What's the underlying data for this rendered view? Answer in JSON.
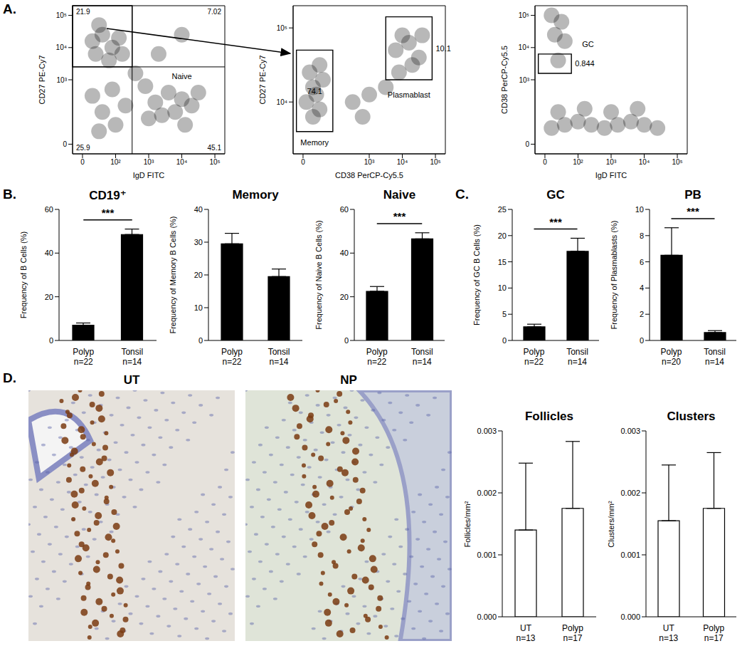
{
  "chart_data": [
    {
      "type": "scatter",
      "panel": "A.",
      "x_label": "IgD FITC",
      "y_label": "CD27 PE-Cy7",
      "xlim": [
        -0.3,
        4.3
      ],
      "ylim": [
        -0.3,
        4.3
      ],
      "xticks": [
        0,
        {
          "value": 1,
          "label": "10²"
        },
        {
          "value": 2,
          "label": "10³"
        },
        {
          "value": 3,
          "label": "10⁴"
        },
        {
          "value": 4,
          "label": "10⁵"
        }
      ],
      "yticks": [
        0,
        {
          "value": 2,
          "label": "10³"
        },
        {
          "value": 3,
          "label": "10⁴"
        },
        {
          "value": 4,
          "label": "10⁵"
        }
      ],
      "x": [
        0.3,
        0.6,
        0.9,
        0.4,
        0.8,
        1.1,
        0.5,
        1.2,
        0.3,
        0.6,
        0.9,
        0.5,
        1.0,
        1.3,
        1.6,
        1.9,
        2.2,
        2.6,
        3.0,
        2.8,
        3.3,
        2.4,
        3.5,
        2.0,
        3.1,
        2.3,
        3.0
      ],
      "y": [
        3.2,
        3.4,
        3.0,
        2.8,
        2.6,
        3.3,
        3.7,
        2.8,
        1.5,
        1.0,
        1.7,
        0.4,
        0.6,
        1.2,
        2.2,
        1.8,
        1.3,
        1.6,
        1.4,
        1.0,
        1.2,
        0.9,
        1.6,
        0.8,
        0.6,
        2.8,
        3.4
      ],
      "color": "#000000",
      "quadrants": {
        "x": 1.5,
        "y": 2.4,
        "percents": [
          21.9,
          7.02,
          25.9,
          45.1
        ]
      },
      "gates": [
        {
          "x": [
            -0.3,
            1.5
          ],
          "y": [
            2.4,
            4.3
          ]
        }
      ],
      "annotations": [
        {
          "text": "Naive",
          "x": 3.0,
          "y": 2.1
        }
      ]
    },
    {
      "type": "scatter",
      "x_label": "CD38 PerCP-Cy5.5",
      "y_label": "CD27 PE-Cy7",
      "xlim": [
        -0.3,
        4.3
      ],
      "ylim": [
        2.3,
        4.3
      ],
      "xticks": [
        0,
        {
          "value": 2,
          "label": "10³"
        },
        {
          "value": 3,
          "label": "10⁴"
        },
        {
          "value": 4,
          "label": "10⁵"
        }
      ],
      "yticks": [
        {
          "value": 3,
          "label": "10⁴"
        },
        {
          "value": 4,
          "label": "10⁵"
        }
      ],
      "x": [
        0.1,
        0.3,
        0.5,
        0.2,
        0.4,
        0.6,
        0.3,
        0.5,
        1.5,
        2.0,
        2.5,
        1.8,
        2.8,
        3.2,
        3.5,
        3.0,
        3.3,
        2.9,
        3.6
      ],
      "y": [
        3.0,
        3.2,
        2.9,
        3.4,
        3.1,
        3.3,
        2.8,
        3.5,
        3.0,
        3.1,
        3.2,
        2.8,
        3.7,
        3.8,
        3.6,
        3.9,
        3.5,
        3.4,
        3.9
      ],
      "color": "#000000",
      "gates": [
        {
          "x": [
            -0.2,
            0.9
          ],
          "y": [
            2.6,
            3.7
          ],
          "percent": 74.1
        },
        {
          "x": [
            2.5,
            3.9
          ],
          "y": [
            3.3,
            4.15
          ],
          "percent": 10.1
        }
      ],
      "annotations": [
        {
          "text": "Memory",
          "x": 0.35,
          "y": 2.45
        },
        {
          "text": "Plasmablast",
          "x": 3.2,
          "y": 3.1
        }
      ]
    },
    {
      "type": "scatter",
      "x_label": "IgD FITC",
      "y_label": "CD38 PerCP-Cy5.5",
      "xlim": [
        -0.3,
        4.3
      ],
      "ylim": [
        -0.3,
        4.3
      ],
      "xticks": [
        0,
        {
          "value": 1,
          "label": "10²"
        },
        {
          "value": 2,
          "label": "10³"
        },
        {
          "value": 3,
          "label": "10⁴"
        },
        {
          "value": 4,
          "label": "10⁵"
        }
      ],
      "yticks": [
        0,
        {
          "value": 2,
          "label": "10³"
        },
        {
          "value": 3,
          "label": "10⁴"
        },
        {
          "value": 4,
          "label": "10⁵"
        }
      ],
      "x": [
        0.2,
        0.6,
        1.0,
        1.4,
        1.8,
        2.2,
        2.6,
        3.0,
        3.4,
        0.4,
        1.2,
        2.0,
        2.8,
        0.3,
        0.5,
        0.2,
        0.6,
        0.4
      ],
      "y": [
        0.5,
        0.6,
        0.7,
        0.6,
        0.5,
        0.6,
        0.7,
        0.6,
        0.5,
        1.0,
        1.1,
        1.0,
        1.1,
        3.4,
        3.8,
        4.0,
        3.2,
        2.6
      ],
      "color": "#000000",
      "gates": [
        {
          "x": [
            -0.2,
            0.8
          ],
          "y": [
            2.2,
            2.8
          ],
          "percent": 0.844
        }
      ],
      "annotations": [
        {
          "text": "GC",
          "x": 1.3,
          "y": 3.1
        }
      ]
    },
    {
      "type": "bar",
      "panel": "B.",
      "title": "CD19⁺",
      "y_label": "Frequency of B Cells (%)",
      "categories": [
        "Polyp",
        "Tonsil"
      ],
      "n_labels": [
        "n=22",
        "n=14"
      ],
      "values": [
        7,
        48.5
      ],
      "errors": [
        1,
        2.5
      ],
      "color": "#000000",
      "ylim": [
        0,
        60
      ],
      "yticks": [
        0,
        20,
        40,
        60
      ],
      "significance": "***"
    },
    {
      "type": "bar",
      "title": "Memory",
      "y_label": "Frequency of Memory B Cells (%)",
      "categories": [
        "Polyp",
        "Tonsil"
      ],
      "n_labels": [
        "n=22",
        "n=14"
      ],
      "values": [
        29.5,
        19.5
      ],
      "errors": [
        3.2,
        2.3
      ],
      "color": "#000000",
      "ylim": [
        0,
        40
      ],
      "yticks": [
        0,
        10,
        20,
        30,
        40
      ]
    },
    {
      "type": "bar",
      "title": "Naive",
      "y_label": "Frequency of Naive B Cells (%)",
      "categories": [
        "Polyp",
        "Tonsil"
      ],
      "n_labels": [
        "n=22",
        "n=14"
      ],
      "values": [
        22.5,
        46.5
      ],
      "errors": [
        2.2,
        2.8
      ],
      "color": "#000000",
      "ylim": [
        0,
        60
      ],
      "yticks": [
        0,
        20,
        40,
        60
      ],
      "significance": "***"
    },
    {
      "type": "bar",
      "panel": "C.",
      "title": "GC",
      "y_label": "Frequency of GC B Cells (%)",
      "categories": [
        "Polyp",
        "Tonsil"
      ],
      "n_labels": [
        "n=22",
        "n=14"
      ],
      "values": [
        2.6,
        17
      ],
      "errors": [
        0.5,
        2.5
      ],
      "color": "#000000",
      "ylim": [
        0,
        25
      ],
      "yticks": [
        0,
        5,
        10,
        15,
        20,
        25
      ],
      "significance": "***"
    },
    {
      "type": "bar",
      "title": "PB",
      "y_label": "Frequency of Plasmablasts (%)",
      "categories": [
        "Polyp",
        "Tonsil"
      ],
      "n_labels": [
        "n=20",
        "n=14"
      ],
      "values": [
        6.5,
        0.6
      ],
      "errors": [
        2.1,
        0.15
      ],
      "color": "#000000",
      "ylim": [
        0,
        10
      ],
      "yticks": [
        0,
        2,
        4,
        6,
        8,
        10
      ],
      "significance": "***"
    },
    {
      "type": "image",
      "panel": "D.",
      "title": "UT"
    },
    {
      "type": "image",
      "title": "NP"
    },
    {
      "type": "bar",
      "title": "Follicles",
      "y_label": "Follicles/mm²",
      "categories": [
        "UT",
        "Polyp"
      ],
      "n_labels": [
        "n=13",
        "n=17"
      ],
      "values": [
        0.0014,
        0.00175
      ],
      "errors": [
        0.00108,
        0.00108
      ],
      "color": "#ffffff",
      "ylim": [
        0,
        0.003
      ],
      "yticks": [
        {
          "value": 0,
          "label": "0.000"
        },
        {
          "value": 0.001,
          "label": "0.001"
        },
        {
          "value": 0.002,
          "label": "0.002"
        },
        {
          "value": 0.003,
          "label": "0.003"
        }
      ]
    },
    {
      "type": "bar",
      "title": "Clusters",
      "y_label": "Clusters/mm²",
      "categories": [
        "UT",
        "Polyp"
      ],
      "n_labels": [
        "n=13",
        "n=17"
      ],
      "values": [
        0.00155,
        0.00175
      ],
      "errors": [
        0.0009,
        0.0009
      ],
      "color": "#ffffff",
      "ylim": [
        0,
        0.003
      ],
      "yticks": [
        {
          "value": 0,
          "label": "0.000"
        },
        {
          "value": 0.001,
          "label": "0.001"
        },
        {
          "value": 0.002,
          "label": "0.002"
        },
        {
          "value": 0.003,
          "label": "0.003"
        }
      ]
    }
  ]
}
